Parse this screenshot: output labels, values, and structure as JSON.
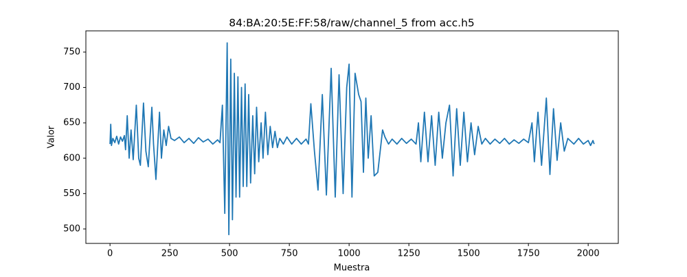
{
  "chart_data": {
    "type": "line",
    "title": "84:BA:20:5E:FF:58/raw/channel_5 from acc.h5",
    "xlabel": "Muestra",
    "ylabel": "Valor",
    "color": "#1f77b4",
    "x": [
      0,
      3,
      6,
      12,
      20,
      28,
      36,
      44,
      52,
      60,
      65,
      72,
      80,
      88,
      97,
      110,
      120,
      127,
      140,
      150,
      160,
      175,
      182,
      192,
      207,
      215,
      225,
      235,
      245,
      255,
      270,
      290,
      310,
      330,
      350,
      370,
      390,
      410,
      430,
      450,
      460,
      470,
      480,
      490,
      497,
      505,
      512,
      520,
      527,
      535,
      542,
      550,
      557,
      565,
      572,
      580,
      588,
      597,
      605,
      613,
      622,
      632,
      640,
      650,
      660,
      670,
      680,
      690,
      700,
      710,
      725,
      740,
      760,
      780,
      800,
      820,
      830,
      840,
      855,
      870,
      888,
      905,
      925,
      942,
      958,
      975,
      990,
      1000,
      1012,
      1025,
      1040,
      1050,
      1060,
      1070,
      1080,
      1092,
      1105,
      1120,
      1140,
      1150,
      1165,
      1180,
      1200,
      1220,
      1240,
      1260,
      1280,
      1290,
      1300,
      1315,
      1330,
      1345,
      1360,
      1375,
      1390,
      1405,
      1420,
      1435,
      1450,
      1465,
      1480,
      1495,
      1510,
      1525,
      1540,
      1555,
      1570,
      1590,
      1610,
      1630,
      1650,
      1670,
      1690,
      1710,
      1730,
      1750,
      1765,
      1775,
      1790,
      1805,
      1825,
      1840,
      1855,
      1870,
      1885,
      1900,
      1915,
      1940,
      1960,
      1980,
      2000,
      2010,
      2020,
      2025
    ],
    "values": [
      620,
      648,
      618,
      628,
      622,
      631,
      620,
      630,
      624,
      632,
      612,
      660,
      600,
      640,
      598,
      675,
      600,
      590,
      678,
      610,
      588,
      672,
      620,
      570,
      665,
      600,
      640,
      618,
      645,
      628,
      625,
      630,
      622,
      628,
      621,
      629,
      623,
      627,
      620,
      626,
      622,
      675,
      522,
      763,
      492,
      740,
      513,
      720,
      545,
      715,
      545,
      700,
      560,
      705,
      560,
      690,
      565,
      660,
      578,
      672,
      595,
      650,
      600,
      665,
      605,
      645,
      615,
      638,
      615,
      628,
      620,
      630,
      620,
      628,
      620,
      627,
      620,
      677,
      610,
      555,
      690,
      548,
      727,
      545,
      718,
      550,
      700,
      733,
      545,
      720,
      690,
      680,
      580,
      685,
      600,
      660,
      575,
      580,
      640,
      630,
      620,
      627,
      620,
      628,
      621,
      627,
      620,
      650,
      595,
      665,
      595,
      660,
      590,
      665,
      600,
      650,
      675,
      575,
      670,
      590,
      665,
      595,
      650,
      605,
      645,
      620,
      628,
      620,
      627,
      621,
      628,
      620,
      626,
      621,
      627,
      622,
      650,
      595,
      665,
      590,
      685,
      577,
      670,
      597,
      650,
      610,
      628,
      620,
      628,
      620,
      625,
      618,
      625,
      620
    ],
    "xlim": [
      -101,
      2126
    ],
    "ylim": [
      479.6,
      780
    ],
    "xticks": [
      0,
      250,
      500,
      750,
      1000,
      1250,
      1500,
      1750,
      2000
    ],
    "yticks": [
      500,
      550,
      600,
      650,
      700,
      750
    ]
  }
}
